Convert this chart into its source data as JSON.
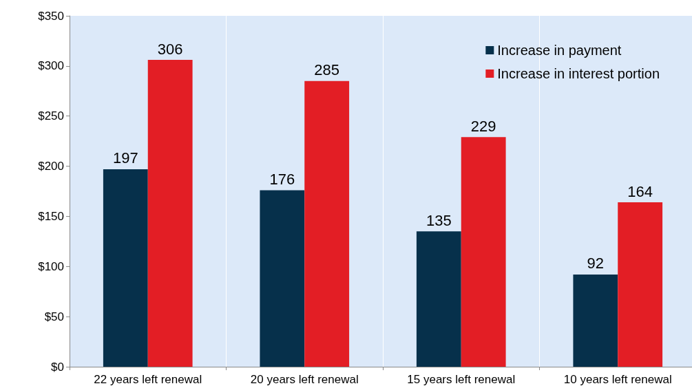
{
  "chart_data": {
    "type": "bar",
    "categories": [
      "22 years left renewal",
      "20 years left renewal",
      "15 years left renewal",
      "10 years left renewal"
    ],
    "series": [
      {
        "name": "Increase in payment",
        "color": "#06304b",
        "values": [
          197,
          176,
          135,
          92
        ]
      },
      {
        "name": "Increase in interest portion",
        "color": "#e31e25",
        "values": [
          306,
          285,
          229,
          164
        ]
      }
    ],
    "ylim": [
      0,
      350
    ],
    "yticks": [
      {
        "value": 0,
        "label": "$0"
      },
      {
        "value": 50,
        "label": "$50"
      },
      {
        "value": 100,
        "label": "$100"
      },
      {
        "value": 150,
        "label": "$150"
      },
      {
        "value": 200,
        "label": "$200"
      },
      {
        "value": 250,
        "label": "$250"
      },
      {
        "value": 300,
        "label": "$300"
      },
      {
        "value": 350,
        "label": "$350"
      }
    ],
    "grid": "x",
    "legend": "top right",
    "data_labels": true
  }
}
